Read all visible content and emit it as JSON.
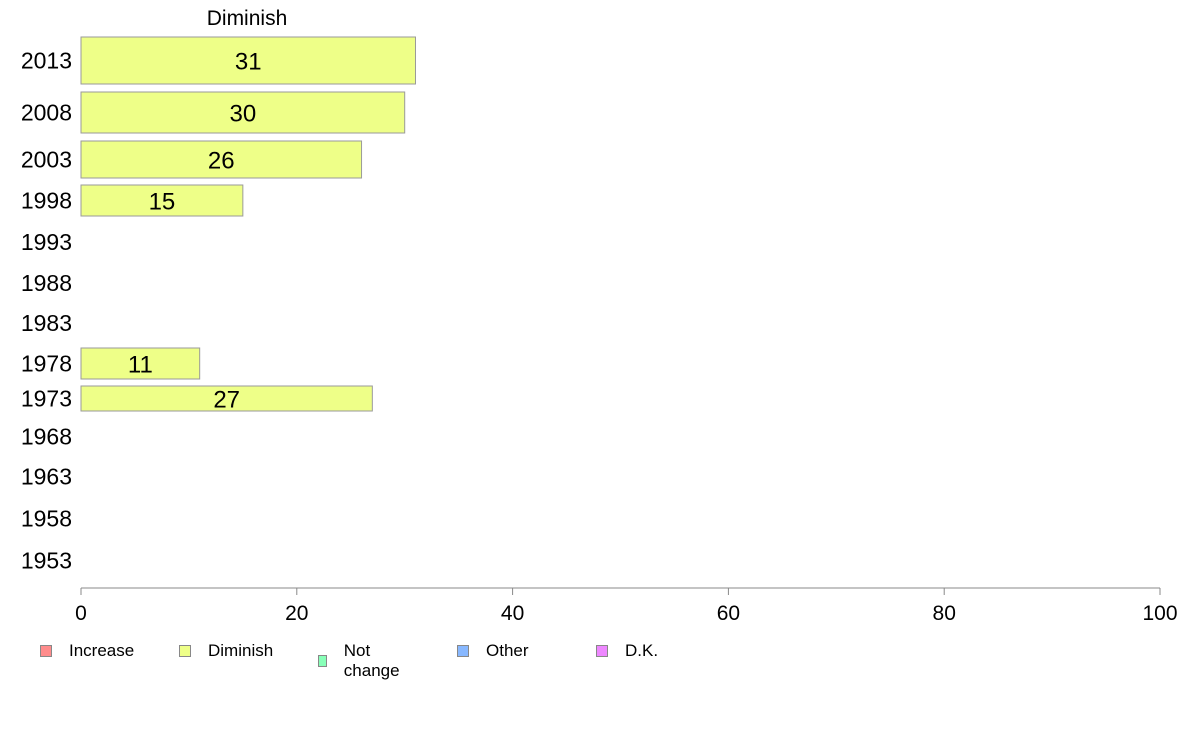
{
  "chart_data": {
    "type": "bar",
    "orientation": "horizontal",
    "panel_title": "Diminish",
    "categories": [
      "2013",
      "2008",
      "2003",
      "1998",
      "1993",
      "1988",
      "1983",
      "1978",
      "1973",
      "1968",
      "1963",
      "1958",
      "1953"
    ],
    "series": [
      {
        "name": "Diminish",
        "values": [
          31,
          30,
          26,
          15,
          null,
          null,
          null,
          11,
          27,
          null,
          null,
          null,
          null
        ]
      }
    ],
    "data_labels": [
      "31",
      "30",
      "26",
      "15",
      "",
      "",
      "",
      "11",
      "27",
      "",
      "",
      "",
      ""
    ],
    "xlim": [
      0,
      100
    ],
    "x_ticks": [
      0,
      20,
      40,
      60,
      80,
      100
    ],
    "x_tick_labels": [
      "0",
      "20",
      "40",
      "60",
      "80",
      "100"
    ],
    "xlabel": "",
    "ylabel": "",
    "grid": false,
    "legend_position": "bottom-left"
  },
  "legend": {
    "items": [
      {
        "label": "Increase",
        "color": "#ff8c8c"
      },
      {
        "label": "Diminish",
        "color": "#eeff88"
      },
      {
        "label": "Not change",
        "color": "#88ffb8"
      },
      {
        "label": "Other",
        "color": "#88b8ff"
      },
      {
        "label": "D.K.",
        "color": "#ee88ff"
      }
    ]
  },
  "colors": {
    "bar_fill": "#eeff88",
    "bar_stroke": "#9a9a9a",
    "axis": "#888888"
  }
}
